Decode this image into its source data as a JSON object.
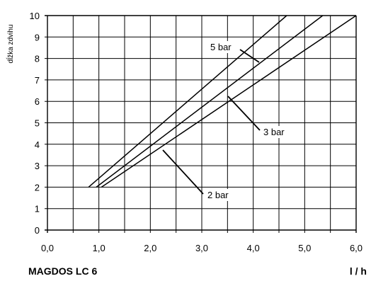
{
  "chart_data": {
    "type": "line",
    "title": "",
    "ylabel": "dĺžka zdvihu",
    "xlabel": "l / h",
    "footer_title": "MAGDOS LC 6",
    "xlim": [
      0,
      6
    ],
    "ylim": [
      0,
      10
    ],
    "x_ticks": [
      "0,0",
      "1,0",
      "2,0",
      "3,0",
      "4,0",
      "5,0",
      "6,0"
    ],
    "y_ticks": [
      "0",
      "1",
      "2",
      "3",
      "4",
      "5",
      "6",
      "7",
      "8",
      "9",
      "10"
    ],
    "grid": true,
    "series": [
      {
        "name": "5 bar",
        "x": [
          0.8,
          4.65
        ],
        "y": [
          2,
          10
        ]
      },
      {
        "name": "3 bar",
        "x": [
          0.95,
          5.35
        ],
        "y": [
          2,
          10
        ]
      },
      {
        "name": "2 bar",
        "x": [
          1.05,
          6.0
        ],
        "y": [
          2,
          10
        ]
      }
    ]
  }
}
